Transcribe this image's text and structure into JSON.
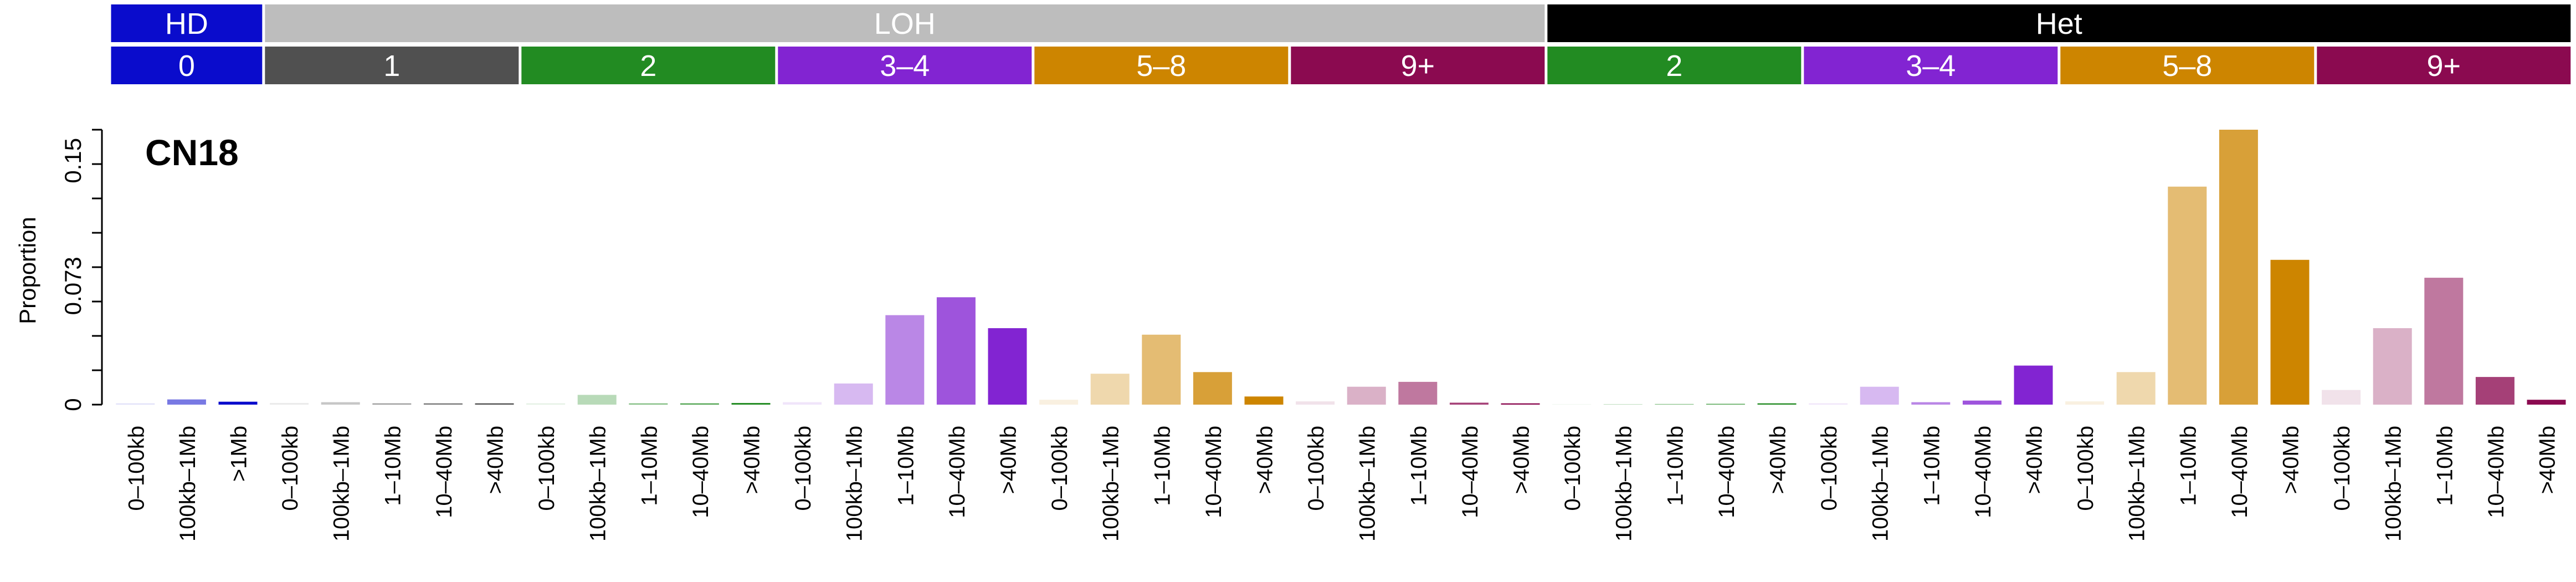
{
  "chart_data": {
    "type": "bar",
    "title": "CN18",
    "ylabel": "Proportion",
    "ylim": [
      0,
      0.169
    ],
    "yticks": [
      {
        "value": 0,
        "label": "0"
      },
      {
        "value": 0.073,
        "label": "0.073"
      },
      {
        "value": 0.15,
        "label": "0.15"
      }
    ],
    "size_labels": [
      "0–100kb",
      "100kb–1Mb",
      "1–10Mb",
      "10–40Mb",
      ">40Mb"
    ],
    "top_groups": [
      {
        "label": "HD",
        "color": "#0a0ccc",
        "span": 3
      },
      {
        "label": "LOH",
        "color": "#bdbdbd",
        "span": 25
      },
      {
        "label": "Het",
        "color": "#000000",
        "span": 20
      }
    ],
    "cn_groups": [
      {
        "label": "0",
        "color": "#0a0ccc",
        "section": "HD",
        "sizes": [
          "0–100kb",
          "100kb–1Mb",
          ">1Mb"
        ],
        "values": [
          0.0008,
          0.0032,
          0.0018
        ]
      },
      {
        "label": "1",
        "color": "#505050",
        "section": "LOH",
        "sizes": [
          "0–100kb",
          "100kb–1Mb",
          "1–10Mb",
          "10–40Mb",
          ">40Mb"
        ],
        "values": [
          0.001,
          0.0015,
          0.0008,
          0.0008,
          0.0008
        ]
      },
      {
        "label": "2",
        "color": "#228b22",
        "section": "LOH",
        "sizes": [
          "0–100kb",
          "100kb–1Mb",
          "1–10Mb",
          "10–40Mb",
          ">40Mb"
        ],
        "values": [
          0.0008,
          0.006,
          0.0008,
          0.0008,
          0.001
        ]
      },
      {
        "label": "3–4",
        "color": "#8224d2",
        "section": "LOH",
        "sizes": [
          "0–100kb",
          "100kb–1Mb",
          "1–10Mb",
          "10–40Mb",
          ">40Mb"
        ],
        "values": [
          0.0015,
          0.013,
          0.055,
          0.066,
          0.047
        ]
      },
      {
        "label": "5–8",
        "color": "#cd8500",
        "section": "LOH",
        "sizes": [
          "0–100kb",
          "100kb–1Mb",
          "1–10Mb",
          "10–40Mb",
          ">40Mb"
        ],
        "values": [
          0.003,
          0.019,
          0.043,
          0.02,
          0.005
        ]
      },
      {
        "label": "9+",
        "color": "#8b0a50",
        "section": "LOH",
        "sizes": [
          "0–100kb",
          "100kb–1Mb",
          "1–10Mb",
          "10–40Mb",
          ">40Mb"
        ],
        "values": [
          0.002,
          0.011,
          0.014,
          0.0012,
          0.0008
        ]
      },
      {
        "label": "2",
        "color": "#228b22",
        "section": "Het",
        "sizes": [
          "0–100kb",
          "100kb–1Mb",
          "1–10Mb",
          "10–40Mb",
          ">40Mb"
        ],
        "values": [
          0.0002,
          0.0003,
          0.0004,
          0.0005,
          0.0008
        ]
      },
      {
        "label": "3–4",
        "color": "#8224d2",
        "section": "Het",
        "sizes": [
          "0–100kb",
          "100kb–1Mb",
          "1–10Mb",
          "10–40Mb",
          ">40Mb"
        ],
        "values": [
          0.0008,
          0.011,
          0.0015,
          0.0025,
          0.024
        ]
      },
      {
        "label": "5–8",
        "color": "#cd8500",
        "section": "Het",
        "sizes": [
          "0–100kb",
          "100kb–1Mb",
          "1–10Mb",
          "10–40Mb",
          ">40Mb"
        ],
        "values": [
          0.002,
          0.02,
          0.134,
          0.169,
          0.089
        ]
      },
      {
        "label": "9+",
        "color": "#8b0a50",
        "section": "Het",
        "sizes": [
          "0–100kb",
          "100kb–1Mb",
          "1–10Mb",
          "10–40Mb",
          ">40Mb"
        ],
        "values": [
          0.009,
          0.047,
          0.078,
          0.017,
          0.003
        ]
      }
    ]
  }
}
